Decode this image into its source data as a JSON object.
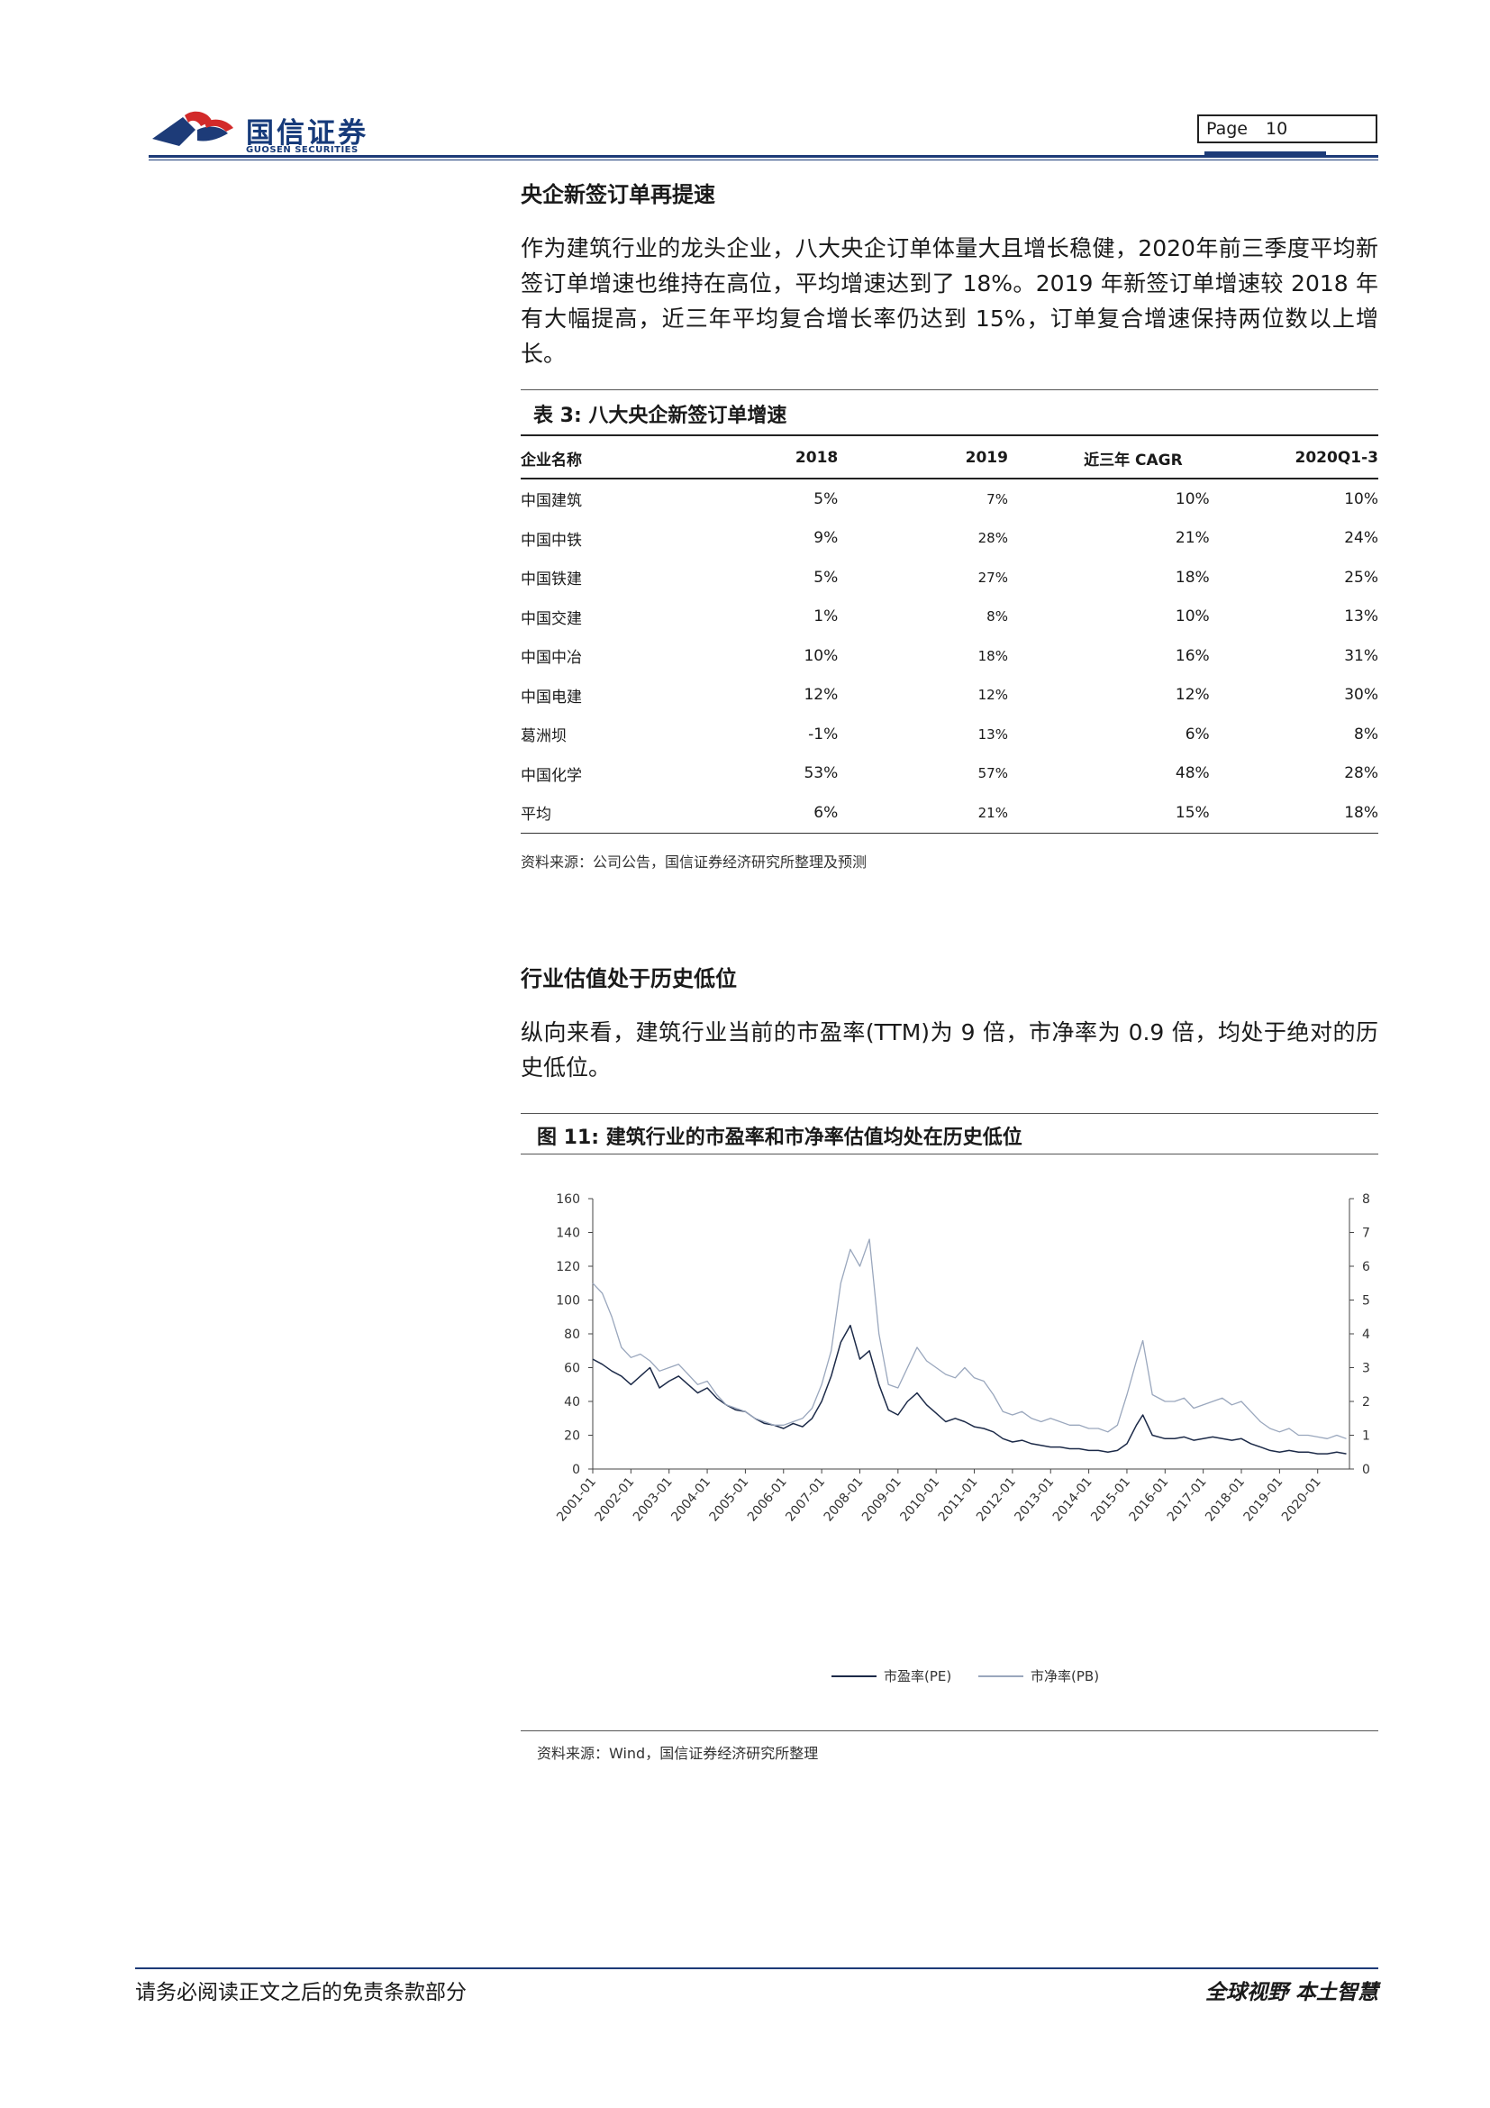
{
  "header": {
    "logo_cn": "国信证券",
    "logo_en": "GUOSEN SECURITIES",
    "page_label": "Page",
    "page_number": "10",
    "brand_color": "#1d3b78",
    "logo_red": "#d22a2a"
  },
  "section1": {
    "heading": "央企新签订单再提速",
    "paragraph": "作为建筑行业的龙头企业，八大央企订单体量大且增长稳健，2020年前三季度平均新签订单增速也维持在高位，平均增速达到了 18%。2019 年新签订单增速较 2018 年有大幅提高，近三年平均复合增长率仍达到 15%，订单复合增速保持两位数以上增长。"
  },
  "table": {
    "title": "表 3:  八大央企新签订单增速",
    "headers": [
      "企业名称",
      "2018",
      "2019",
      "近三年 CAGR",
      "2020Q1-3"
    ],
    "rows": [
      [
        "中国建筑",
        "5%",
        "7%",
        "10%",
        "10%"
      ],
      [
        "中国中铁",
        "9%",
        "28%",
        "21%",
        "24%"
      ],
      [
        "中国铁建",
        "5%",
        "27%",
        "18%",
        "25%"
      ],
      [
        "中国交建",
        "1%",
        "8%",
        "10%",
        "13%"
      ],
      [
        "中国中冶",
        "10%",
        "18%",
        "16%",
        "31%"
      ],
      [
        "中国电建",
        "12%",
        "12%",
        "12%",
        "30%"
      ],
      [
        "葛洲坝",
        "-1%",
        "13%",
        "6%",
        "8%"
      ],
      [
        "中国化学",
        "53%",
        "57%",
        "48%",
        "28%"
      ],
      [
        "平均",
        "6%",
        "21%",
        "15%",
        "18%"
      ]
    ],
    "source": "资料来源：公司公告，国信证券经济研究所整理及预测"
  },
  "section2": {
    "heading": "行业估值处于历史低位",
    "paragraph": "纵向来看，建筑行业当前的市盈率(TTM)为 9 倍，市净率为 0.9 倍，均处于绝对的历史低位。"
  },
  "figure": {
    "title": "图 11:  建筑行业的市盈率和市净率估值均处在历史低位",
    "source": "资料来源：Wind，国信证券经济研究所整理"
  },
  "chart_data": {
    "type": "line",
    "title": "",
    "x_labels": [
      "2001-01",
      "2002-01",
      "2003-01",
      "2004-01",
      "2005-01",
      "2006-01",
      "2007-01",
      "2008-01",
      "2009-01",
      "2010-01",
      "2011-01",
      "2012-01",
      "2013-01",
      "2014-01",
      "2015-01",
      "2016-01",
      "2017-01",
      "2018-01",
      "2019-01",
      "2020-01"
    ],
    "y_left": {
      "min": 0,
      "max": 160,
      "ticks": [
        0,
        20,
        40,
        60,
        80,
        100,
        120,
        140,
        160
      ]
    },
    "y_right": {
      "min": 0,
      "max": 8,
      "ticks": [
        0,
        1,
        2,
        3,
        4,
        5,
        6,
        7,
        8
      ]
    },
    "grid": false,
    "legend_position": "bottom",
    "series": [
      {
        "name": "市盈率(PE)",
        "axis": "left",
        "color": "#1c2a48",
        "points": [
          [
            "2001-01",
            65
          ],
          [
            "2001-04",
            62
          ],
          [
            "2001-07",
            58
          ],
          [
            "2001-10",
            55
          ],
          [
            "2002-01",
            50
          ],
          [
            "2002-04",
            55
          ],
          [
            "2002-07",
            60
          ],
          [
            "2002-10",
            48
          ],
          [
            "2003-01",
            52
          ],
          [
            "2003-04",
            55
          ],
          [
            "2003-07",
            50
          ],
          [
            "2003-10",
            45
          ],
          [
            "2004-01",
            48
          ],
          [
            "2004-04",
            42
          ],
          [
            "2004-07",
            38
          ],
          [
            "2004-10",
            35
          ],
          [
            "2005-01",
            34
          ],
          [
            "2005-04",
            30
          ],
          [
            "2005-07",
            27
          ],
          [
            "2005-10",
            26
          ],
          [
            "2006-01",
            24
          ],
          [
            "2006-04",
            27
          ],
          [
            "2006-07",
            25
          ],
          [
            "2006-10",
            30
          ],
          [
            "2007-01",
            40
          ],
          [
            "2007-04",
            55
          ],
          [
            "2007-07",
            75
          ],
          [
            "2007-10",
            85
          ],
          [
            "2008-01",
            65
          ],
          [
            "2008-04",
            70
          ],
          [
            "2008-07",
            50
          ],
          [
            "2008-10",
            35
          ],
          [
            "2009-01",
            32
          ],
          [
            "2009-04",
            40
          ],
          [
            "2009-07",
            45
          ],
          [
            "2009-10",
            38
          ],
          [
            "2010-01",
            33
          ],
          [
            "2010-04",
            28
          ],
          [
            "2010-07",
            30
          ],
          [
            "2010-10",
            28
          ],
          [
            "2011-01",
            25
          ],
          [
            "2011-04",
            24
          ],
          [
            "2011-07",
            22
          ],
          [
            "2011-10",
            18
          ],
          [
            "2012-01",
            16
          ],
          [
            "2012-04",
            17
          ],
          [
            "2012-07",
            15
          ],
          [
            "2012-10",
            14
          ],
          [
            "2013-01",
            13
          ],
          [
            "2013-04",
            13
          ],
          [
            "2013-07",
            12
          ],
          [
            "2013-10",
            12
          ],
          [
            "2014-01",
            11
          ],
          [
            "2014-04",
            11
          ],
          [
            "2014-07",
            10
          ],
          [
            "2014-10",
            11
          ],
          [
            "2015-01",
            15
          ],
          [
            "2015-04",
            26
          ],
          [
            "2015-06",
            32
          ],
          [
            "2015-09",
            20
          ],
          [
            "2016-01",
            18
          ],
          [
            "2016-04",
            18
          ],
          [
            "2016-07",
            19
          ],
          [
            "2016-10",
            17
          ],
          [
            "2017-01",
            18
          ],
          [
            "2017-04",
            19
          ],
          [
            "2017-07",
            18
          ],
          [
            "2017-10",
            17
          ],
          [
            "2018-01",
            18
          ],
          [
            "2018-04",
            15
          ],
          [
            "2018-07",
            13
          ],
          [
            "2018-10",
            11
          ],
          [
            "2019-01",
            10
          ],
          [
            "2019-04",
            11
          ],
          [
            "2019-07",
            10
          ],
          [
            "2019-10",
            10
          ],
          [
            "2020-01",
            9
          ],
          [
            "2020-04",
            9
          ],
          [
            "2020-07",
            10
          ],
          [
            "2020-10",
            9
          ]
        ]
      },
      {
        "name": "市净率(PB)",
        "axis": "right",
        "color": "#9aa7bd",
        "points": [
          [
            "2001-01",
            5.5
          ],
          [
            "2001-04",
            5.2
          ],
          [
            "2001-07",
            4.5
          ],
          [
            "2001-10",
            3.6
          ],
          [
            "2002-01",
            3.3
          ],
          [
            "2002-04",
            3.4
          ],
          [
            "2002-07",
            3.2
          ],
          [
            "2002-10",
            2.9
          ],
          [
            "2003-01",
            3.0
          ],
          [
            "2003-04",
            3.1
          ],
          [
            "2003-07",
            2.8
          ],
          [
            "2003-10",
            2.5
          ],
          [
            "2004-01",
            2.6
          ],
          [
            "2004-04",
            2.2
          ],
          [
            "2004-07",
            1.9
          ],
          [
            "2004-10",
            1.8
          ],
          [
            "2005-01",
            1.7
          ],
          [
            "2005-04",
            1.5
          ],
          [
            "2005-07",
            1.4
          ],
          [
            "2005-10",
            1.3
          ],
          [
            "2006-01",
            1.3
          ],
          [
            "2006-04",
            1.4
          ],
          [
            "2006-07",
            1.5
          ],
          [
            "2006-10",
            1.8
          ],
          [
            "2007-01",
            2.5
          ],
          [
            "2007-04",
            3.5
          ],
          [
            "2007-07",
            5.5
          ],
          [
            "2007-10",
            6.5
          ],
          [
            "2008-01",
            6.0
          ],
          [
            "2008-04",
            6.8
          ],
          [
            "2008-07",
            4.0
          ],
          [
            "2008-10",
            2.5
          ],
          [
            "2009-01",
            2.4
          ],
          [
            "2009-04",
            3.0
          ],
          [
            "2009-07",
            3.6
          ],
          [
            "2009-10",
            3.2
          ],
          [
            "2010-01",
            3.0
          ],
          [
            "2010-04",
            2.8
          ],
          [
            "2010-07",
            2.7
          ],
          [
            "2010-10",
            3.0
          ],
          [
            "2011-01",
            2.7
          ],
          [
            "2011-04",
            2.6
          ],
          [
            "2011-07",
            2.2
          ],
          [
            "2011-10",
            1.7
          ],
          [
            "2012-01",
            1.6
          ],
          [
            "2012-04",
            1.7
          ],
          [
            "2012-07",
            1.5
          ],
          [
            "2012-10",
            1.4
          ],
          [
            "2013-01",
            1.5
          ],
          [
            "2013-04",
            1.4
          ],
          [
            "2013-07",
            1.3
          ],
          [
            "2013-10",
            1.3
          ],
          [
            "2014-01",
            1.2
          ],
          [
            "2014-04",
            1.2
          ],
          [
            "2014-07",
            1.1
          ],
          [
            "2014-10",
            1.3
          ],
          [
            "2015-01",
            2.2
          ],
          [
            "2015-04",
            3.2
          ],
          [
            "2015-06",
            3.8
          ],
          [
            "2015-09",
            2.2
          ],
          [
            "2016-01",
            2.0
          ],
          [
            "2016-04",
            2.0
          ],
          [
            "2016-07",
            2.1
          ],
          [
            "2016-10",
            1.8
          ],
          [
            "2017-01",
            1.9
          ],
          [
            "2017-04",
            2.0
          ],
          [
            "2017-07",
            2.1
          ],
          [
            "2017-10",
            1.9
          ],
          [
            "2018-01",
            2.0
          ],
          [
            "2018-04",
            1.7
          ],
          [
            "2018-07",
            1.4
          ],
          [
            "2018-10",
            1.2
          ],
          [
            "2019-01",
            1.1
          ],
          [
            "2019-04",
            1.2
          ],
          [
            "2019-07",
            1.0
          ],
          [
            "2019-10",
            1.0
          ],
          [
            "2020-01",
            0.95
          ],
          [
            "2020-04",
            0.9
          ],
          [
            "2020-07",
            1.0
          ],
          [
            "2020-10",
            0.9
          ]
        ]
      }
    ]
  },
  "footer": {
    "left": "请务必阅读正文之后的免责条款部分",
    "right": "全球视野  本土智慧"
  }
}
